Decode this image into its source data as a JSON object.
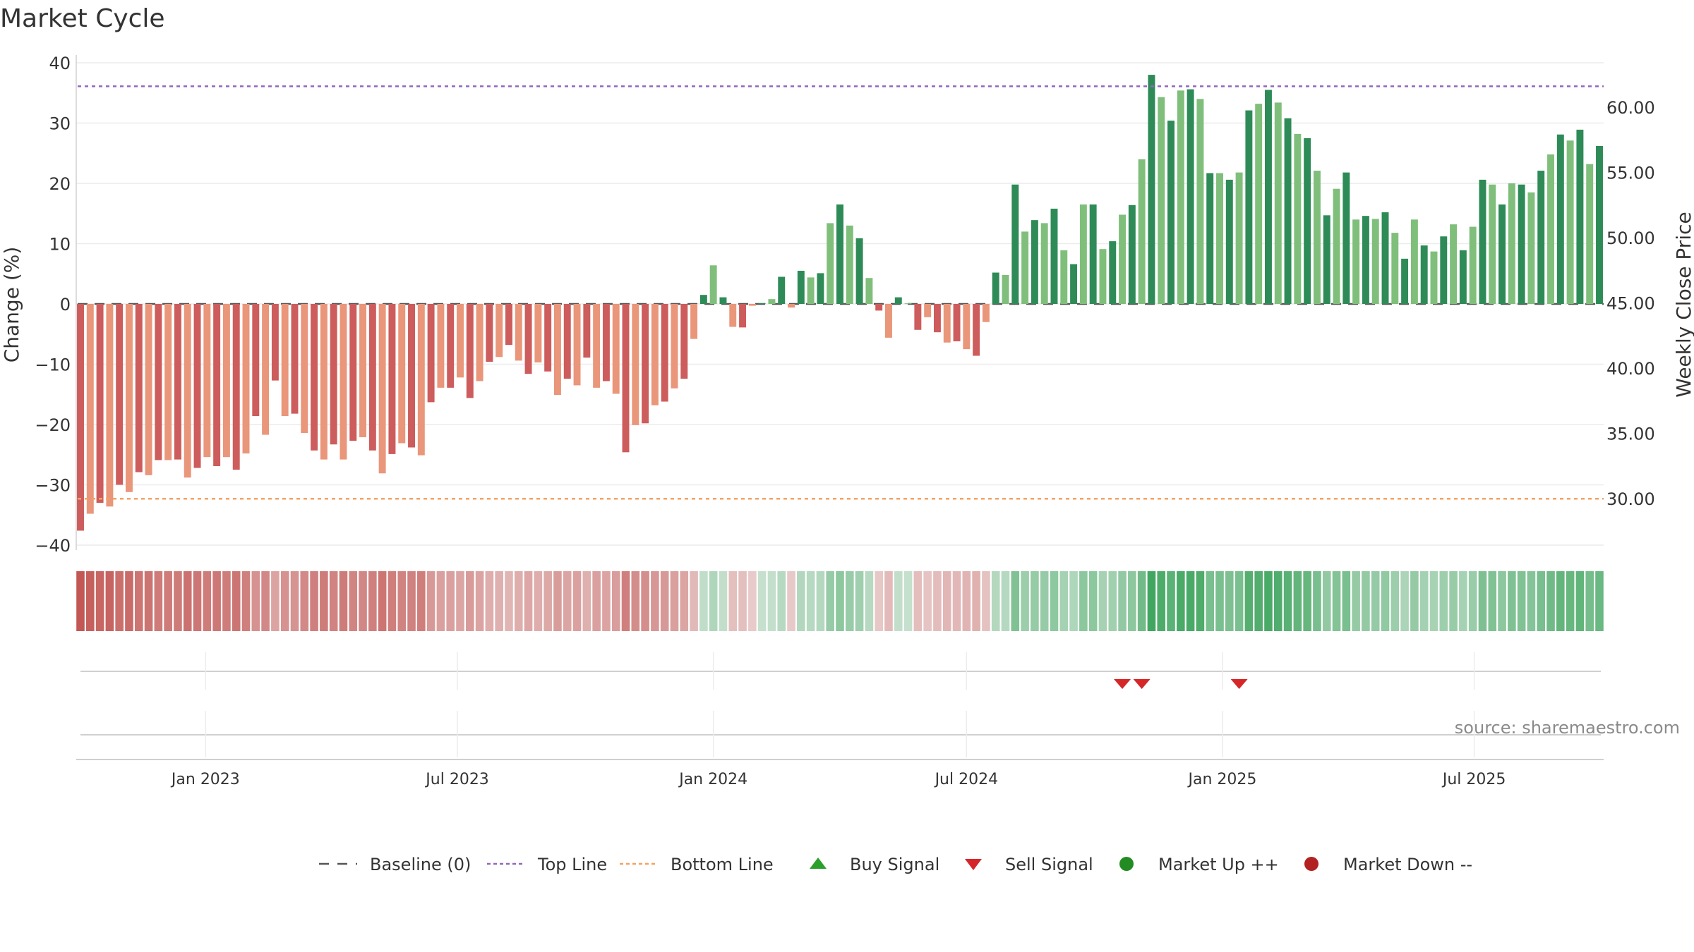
{
  "chart_data": {
    "type": "bar",
    "title": "Market Cycle",
    "source": "source: sharemaestro.com",
    "x_start": "2022-10-03",
    "x_step_days": 7,
    "left_axis": {
      "label": "Change (%)",
      "range": [
        -40,
        40
      ],
      "ticks": [
        40,
        30,
        20,
        10,
        0,
        -10,
        -20,
        -30,
        -40
      ],
      "tick_labels": [
        "40",
        "30",
        "20",
        "10",
        "0",
        "−10",
        "−20",
        "−30",
        "−40"
      ]
    },
    "right_axis": {
      "label": "Weekly Close Price",
      "range": [
        26.5,
        63.4
      ],
      "ticks": [
        60,
        55,
        50,
        45,
        40,
        35,
        30
      ],
      "tick_labels": [
        "60.00",
        "55.00",
        "50.00",
        "45.00",
        "40.00",
        "35.00",
        "30.00"
      ]
    },
    "x_ticks": [
      {
        "date": "2023-01-01",
        "label": "Jan 2023"
      },
      {
        "date": "2023-07-01",
        "label": "Jul 2023"
      },
      {
        "date": "2024-01-01",
        "label": "Jan 2024"
      },
      {
        "date": "2024-07-01",
        "label": "Jul 2024"
      },
      {
        "date": "2025-01-01",
        "label": "Jan 2025"
      },
      {
        "date": "2025-07-01",
        "label": "Jul 2025"
      }
    ],
    "reference_lines": {
      "baseline": 0,
      "top_line_price": 61.6,
      "bottom_line_price": 30.0
    },
    "values": [
      -37.6,
      -34.8,
      -33,
      -33.6,
      -30,
      -31.2,
      -27.9,
      -28.4,
      -25.9,
      -25.9,
      -25.8,
      -28.8,
      -27.2,
      -25.4,
      -26.9,
      -25.4,
      -27.5,
      -24.8,
      -18.6,
      -21.7,
      -12.7,
      -18.6,
      -18.2,
      -21.4,
      -24.3,
      -25.8,
      -23.3,
      -25.8,
      -22.7,
      -22.1,
      -24.3,
      -28.1,
      -24.9,
      -23.1,
      -23.8,
      -25.1,
      -16.3,
      -13.9,
      -13.9,
      -12.2,
      -15.6,
      -12.8,
      -9.6,
      -8.8,
      -6.8,
      -9.4,
      -11.6,
      -9.7,
      -11.2,
      -15.1,
      -12.4,
      -13.5,
      -8.9,
      -13.9,
      -12.8,
      -14.9,
      -24.6,
      -20.1,
      -19.8,
      -16.8,
      -16.2,
      -14,
      -12.4,
      -5.8,
      1.5,
      6.4,
      1.1,
      -3.8,
      -3.9,
      -0.3,
      0.1,
      0.8,
      4.5,
      -0.6,
      5.5,
      4.4,
      5.1,
      13.4,
      16.5,
      13,
      10.9,
      4.3,
      -1.1,
      -5.6,
      1.1,
      0.1,
      -4.3,
      -2.2,
      -4.7,
      -6.4,
      -6.2,
      -7.5,
      -8.6,
      -3,
      5.2,
      4.8,
      19.8,
      12,
      13.9,
      13.4,
      15.8,
      8.9,
      6.6,
      16.5,
      16.5,
      9.1,
      10.4,
      14.8,
      16.4,
      24,
      38,
      34.3,
      30.4,
      35.4,
      35.6,
      34,
      21.7,
      21.7,
      20.6,
      21.8,
      32.1,
      33.2,
      35.5,
      33.4,
      30.8,
      28.2,
      27.5,
      22.1,
      14.7,
      19.1,
      21.8,
      14,
      14.6,
      14.1,
      15.2,
      11.8,
      7.5,
      14,
      9.7,
      8.7,
      11.2,
      13.2,
      8.9,
      12.8,
      20.6,
      19.8,
      16.5,
      20,
      19.8,
      18.5,
      22.1,
      24.8,
      28.1,
      27.1,
      28.9,
      23.2,
      26.2
    ],
    "signals": {
      "buy": [],
      "sell": [
        "2024-10-21",
        "2024-11-04",
        "2025-01-13"
      ],
      "market_up": [],
      "market_down": []
    },
    "colors": {
      "neg_strong": "#cd5c5c",
      "neg_light": "#e9967a",
      "pos_strong": "#2e8b57",
      "pos_light": "#7fbf7b",
      "top_line": "#9467bd",
      "bottom_line": "#f4a261",
      "sell": "#d62728",
      "buy": "#2ca02c",
      "market_up": "#228b22",
      "market_down": "#b22222"
    },
    "legend": [
      {
        "key": "baseline",
        "label": "Baseline (0)"
      },
      {
        "key": "top_line",
        "label": "Top Line"
      },
      {
        "key": "bottom_line",
        "label": "Bottom Line"
      },
      {
        "key": "buy_signal",
        "label": "Buy Signal"
      },
      {
        "key": "sell_signal",
        "label": "Sell Signal"
      },
      {
        "key": "market_up",
        "label": "Market Up ++"
      },
      {
        "key": "market_down",
        "label": "Market Down --"
      }
    ],
    "legend_placement": "bottom-center",
    "grid": true
  }
}
